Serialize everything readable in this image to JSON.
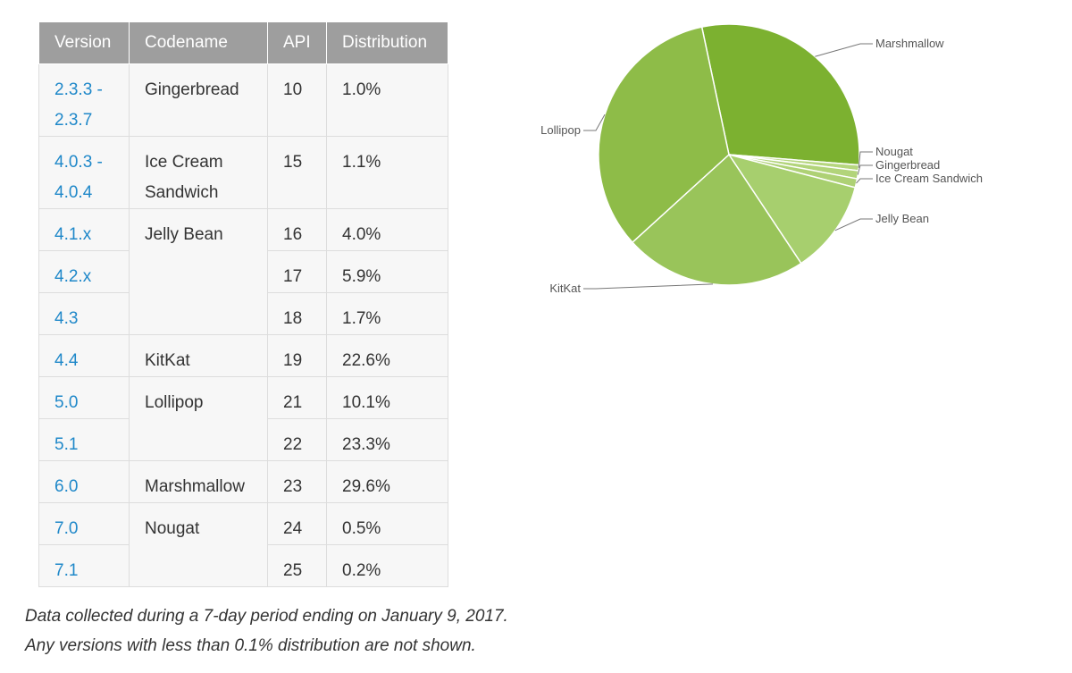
{
  "table": {
    "headers": [
      "Version",
      "Codename",
      "API",
      "Distribution"
    ],
    "rows": [
      {
        "version": "2.3.3 - 2.3.7",
        "codename": "Gingerbread",
        "api": "10",
        "distribution": "1.0%"
      },
      {
        "version": "4.0.3 - 4.0.4",
        "codename": "Ice Cream Sandwich",
        "api": "15",
        "distribution": "1.1%"
      },
      {
        "version": "4.1.x",
        "codename": "Jelly Bean",
        "api": "16",
        "distribution": "4.0%"
      },
      {
        "version": "4.2.x",
        "codename": "",
        "api": "17",
        "distribution": "5.9%"
      },
      {
        "version": "4.3",
        "codename": "",
        "api": "18",
        "distribution": "1.7%"
      },
      {
        "version": "4.4",
        "codename": "KitKat",
        "api": "19",
        "distribution": "22.6%"
      },
      {
        "version": "5.0",
        "codename": "Lollipop",
        "api": "21",
        "distribution": "10.1%"
      },
      {
        "version": "5.1",
        "codename": "",
        "api": "22",
        "distribution": "23.3%"
      },
      {
        "version": "6.0",
        "codename": "Marshmallow",
        "api": "23",
        "distribution": "29.6%"
      },
      {
        "version": "7.0",
        "codename": "Nougat",
        "api": "24",
        "distribution": "0.5%"
      },
      {
        "version": "7.1",
        "codename": "",
        "api": "25",
        "distribution": "0.2%"
      }
    ]
  },
  "footnote": {
    "line1": "Data collected during a 7-day period ending on January 9, 2017.",
    "line2": "Any versions with less than 0.1% distribution are not shown."
  },
  "chart_data": {
    "type": "pie",
    "slices": [
      {
        "label": "Marshmallow",
        "value": 29.6,
        "color": "#7cb130"
      },
      {
        "label": "Nougat",
        "value": 0.7,
        "color": "#b6d67f"
      },
      {
        "label": "Gingerbread",
        "value": 1.0,
        "color": "#b2d47a"
      },
      {
        "label": "Ice Cream Sandwich",
        "value": 1.1,
        "color": "#aed175"
      },
      {
        "label": "Jelly Bean",
        "value": 11.6,
        "color": "#a7cf6e"
      },
      {
        "label": "KitKat",
        "value": 22.6,
        "color": "#99c45a"
      },
      {
        "label": "Lollipop",
        "value": 33.4,
        "color": "#8ebc48"
      }
    ]
  }
}
